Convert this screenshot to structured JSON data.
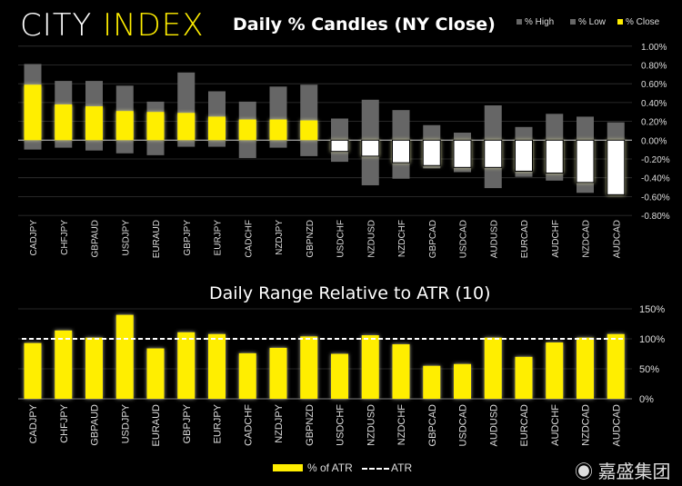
{
  "brand": {
    "part1": "CITY",
    "part2": "INDEX"
  },
  "watermark": {
    "icon": "weibo-icon",
    "text": "嘉盛集团"
  },
  "colors": {
    "close": "#ffee00",
    "range": "#666666",
    "negative": "#ffffff",
    "atr": "#ffffff"
  },
  "chart_data": [
    {
      "type": "bar",
      "title": "Daily % Candles (NY Close)",
      "legend": [
        "% High",
        "% Low",
        "% Close"
      ],
      "legend_position": "top-right",
      "categories": [
        "CADJPY",
        "CHFJPY",
        "GBPAUD",
        "USDJPY",
        "EURAUD",
        "GBPJPY",
        "EURJPY",
        "CADCHF",
        "NZDJPY",
        "GBPNZD",
        "USDCHF",
        "NZDUSD",
        "NZDCHF",
        "GBPCAD",
        "USDCAD",
        "AUDUSD",
        "EURCAD",
        "AUDCHF",
        "NZDCAD",
        "AUDCAD"
      ],
      "series": [
        {
          "name": "% High",
          "values": [
            0.81,
            0.63,
            0.63,
            0.58,
            0.41,
            0.72,
            0.52,
            0.41,
            0.57,
            0.59,
            0.23,
            0.43,
            0.32,
            0.16,
            0.08,
            0.37,
            0.14,
            0.28,
            0.25,
            0.19
          ]
        },
        {
          "name": "% Low",
          "values": [
            -0.1,
            -0.08,
            -0.11,
            -0.14,
            -0.16,
            -0.07,
            -0.07,
            -0.19,
            -0.08,
            -0.17,
            -0.23,
            -0.48,
            -0.41,
            -0.3,
            -0.34,
            -0.51,
            -0.39,
            -0.43,
            -0.56,
            -0.58
          ]
        },
        {
          "name": "% Close",
          "values": [
            0.59,
            0.38,
            0.36,
            0.31,
            0.3,
            0.29,
            0.25,
            0.22,
            0.22,
            0.21,
            -0.12,
            -0.17,
            -0.24,
            -0.27,
            -0.29,
            -0.29,
            -0.33,
            -0.35,
            -0.45,
            -0.58
          ]
        }
      ],
      "ylim": [
        -0.8,
        1.0
      ],
      "yticks": [
        "1.00%",
        "0.80%",
        "0.60%",
        "0.40%",
        "0.20%",
        "0.00%",
        "-0.20%",
        "-0.40%",
        "-0.60%",
        "-0.80%"
      ],
      "grid": true
    },
    {
      "type": "bar",
      "title": "Daily Range Relative to ATR (10)",
      "legend": [
        "% of ATR",
        "ATR"
      ],
      "legend_position": "bottom",
      "categories": [
        "CADJPY",
        "CHFJPY",
        "GBPAUD",
        "USDJPY",
        "EURAUD",
        "GBPJPY",
        "EURJPY",
        "CADCHF",
        "NZDJPY",
        "GBPNZD",
        "USDCHF",
        "NZDUSD",
        "NZDCHF",
        "GBPCAD",
        "USDCAD",
        "AUDUSD",
        "EURCAD",
        "AUDCHF",
        "NZDCAD",
        "AUDCAD"
      ],
      "values": [
        93,
        114,
        102,
        140,
        84,
        111,
        108,
        76,
        85,
        104,
        75,
        106,
        91,
        55,
        58,
        102,
        70,
        94,
        102,
        108
      ],
      "atr_line": 100,
      "ylim": [
        0,
        150
      ],
      "yticks": [
        "150%",
        "100%",
        "50%",
        "0%"
      ],
      "grid": true
    }
  ]
}
